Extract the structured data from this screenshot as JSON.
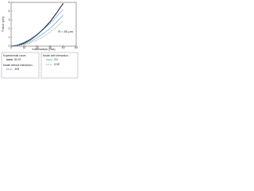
{
  "chart_data": {
    "type": "line",
    "x_label": "Indentation (nm)",
    "y_label": "Force (nN)",
    "annotation": "R = 50 µm",
    "legend_headings": [
      "Experimental curve :",
      "Model without interaction :",
      "Model with interaction :"
    ],
    "x": [
      0,
      5,
      10,
      15,
      20,
      25,
      30,
      35,
      40
    ],
    "series": [
      {
        "name": "Ni-NT",
        "color": "#000000",
        "dash": false,
        "values": [
          0,
          0.1,
          0.35,
          0.75,
          1.3,
          2.0,
          2.8,
          3.8,
          4.9
        ]
      },
      {
        "name": "JKR",
        "color": "#1f3fbf",
        "dash": true,
        "values": [
          0,
          0.15,
          0.45,
          0.85,
          1.35,
          1.95,
          2.6,
          3.4,
          4.2
        ]
      },
      {
        "name": "CO",
        "color": "#2aa6d6",
        "dash": false,
        "values": [
          0,
          0.08,
          0.25,
          0.55,
          0.95,
          1.45,
          2.05,
          2.75,
          3.55
        ]
      },
      {
        "name": "COE",
        "color": "#888888",
        "dash": true,
        "values": [
          0,
          0.05,
          0.18,
          0.4,
          0.7,
          1.1,
          1.6,
          2.2,
          2.9
        ]
      }
    ],
    "xlim": [
      0,
      50
    ],
    "xticks": [
      0,
      10,
      20,
      30,
      40,
      50
    ],
    "ylim": [
      0,
      5
    ],
    "yticks": [
      0,
      1,
      2,
      3,
      4,
      5
    ]
  }
}
